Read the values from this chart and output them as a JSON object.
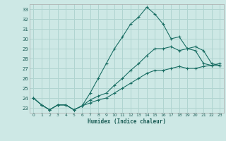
{
  "xlabel": "Humidex (Indice chaleur)",
  "xlim": [
    -0.5,
    23.5
  ],
  "ylim": [
    22.5,
    33.5
  ],
  "yticks": [
    23,
    24,
    25,
    26,
    27,
    28,
    29,
    30,
    31,
    32,
    33
  ],
  "xticks": [
    0,
    1,
    2,
    3,
    4,
    5,
    6,
    7,
    8,
    9,
    10,
    11,
    12,
    13,
    14,
    15,
    16,
    17,
    18,
    19,
    20,
    21,
    22,
    23
  ],
  "background_color": "#cde8e5",
  "grid_color": "#b0d4d0",
  "line_color": "#1a6e64",
  "line1_y": [
    24.0,
    23.3,
    22.8,
    23.3,
    23.3,
    22.8,
    23.2,
    24.5,
    26.0,
    27.5,
    29.0,
    30.2,
    31.5,
    32.2,
    33.2,
    32.5,
    31.5,
    30.0,
    30.2,
    29.0,
    28.8,
    27.5,
    27.3,
    27.3
  ],
  "line2_y": [
    24.0,
    23.3,
    22.8,
    23.3,
    23.3,
    22.8,
    23.2,
    23.8,
    24.2,
    24.5,
    25.3,
    26.0,
    26.8,
    27.5,
    28.3,
    29.0,
    29.0,
    29.2,
    28.8,
    29.0,
    29.2,
    28.8,
    27.5,
    27.3
  ],
  "line3_y": [
    24.0,
    23.3,
    22.8,
    23.3,
    23.3,
    22.8,
    23.2,
    23.5,
    23.8,
    24.0,
    24.5,
    25.0,
    25.5,
    26.0,
    26.5,
    26.8,
    26.8,
    27.0,
    27.2,
    27.0,
    27.0,
    27.2,
    27.3,
    27.5
  ]
}
